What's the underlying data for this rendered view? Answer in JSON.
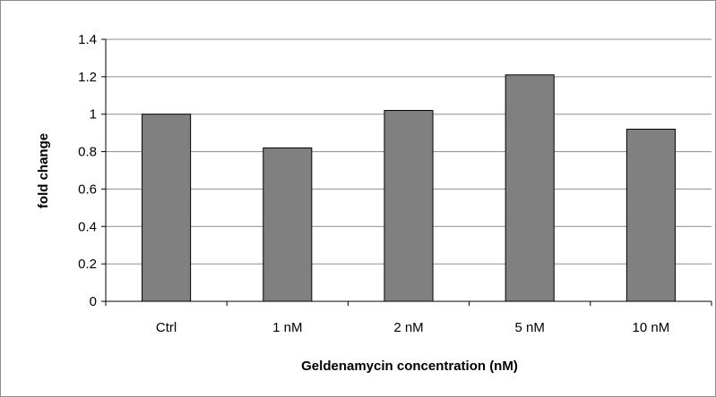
{
  "chart_data": {
    "type": "bar",
    "title": "",
    "xlabel": "Geldenamycin concentration (nM)",
    "ylabel": "fold change",
    "categories": [
      "Ctrl",
      "1 nM",
      "2 nM",
      "5 nM",
      "10 nM"
    ],
    "values": [
      1.0,
      0.82,
      1.02,
      1.21,
      0.92
    ],
    "ylim": [
      0,
      1.4
    ],
    "yticks": [
      "0",
      "0.2",
      "0.4",
      "0.6",
      "0.8",
      "1",
      "1.2",
      "1.4"
    ],
    "grid": true,
    "legend": "none",
    "bar_color": "#808080",
    "bar_edge_color": "#000000"
  }
}
